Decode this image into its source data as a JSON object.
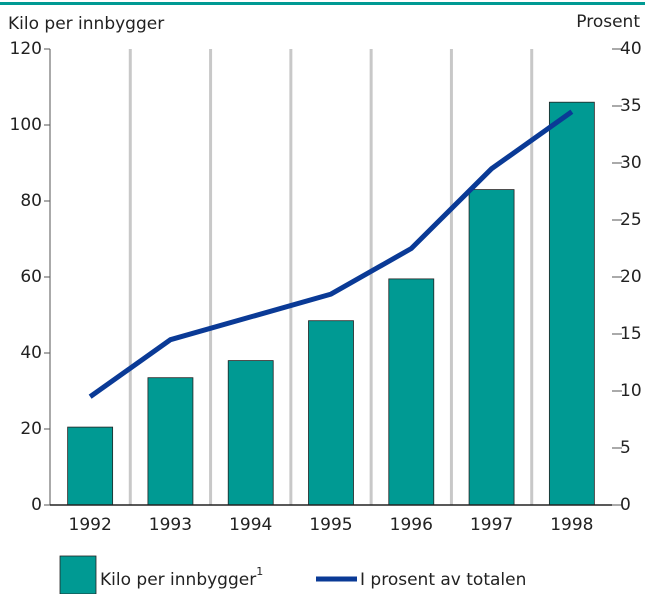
{
  "chart_data": {
    "type": "bar_line",
    "ylabel": "Kilo per innbygger",
    "y2label": "Prosent",
    "categories": [
      "1992",
      "1993",
      "1994",
      "1995",
      "1996",
      "1997",
      "1998"
    ],
    "series": [
      {
        "name": "Kilo per innbygger",
        "footnote": "1",
        "type": "bar",
        "color": "#009a93",
        "values": [
          20.5,
          33.5,
          38,
          48.5,
          59.5,
          83,
          106
        ]
      },
      {
        "name": "I prosent av totalen",
        "type": "line",
        "axis": "y2",
        "color": "#0a3a96",
        "values": [
          9.5,
          14.5,
          16.5,
          18.5,
          22.5,
          29.5,
          34.5
        ]
      }
    ],
    "ylim": [
      0,
      120
    ],
    "yticks": [
      0,
      20,
      40,
      60,
      80,
      100,
      120
    ],
    "y2lim": [
      0,
      40
    ],
    "y2ticks": [
      0,
      5,
      10,
      15,
      20,
      25,
      30,
      35,
      40
    ],
    "grid": true
  }
}
